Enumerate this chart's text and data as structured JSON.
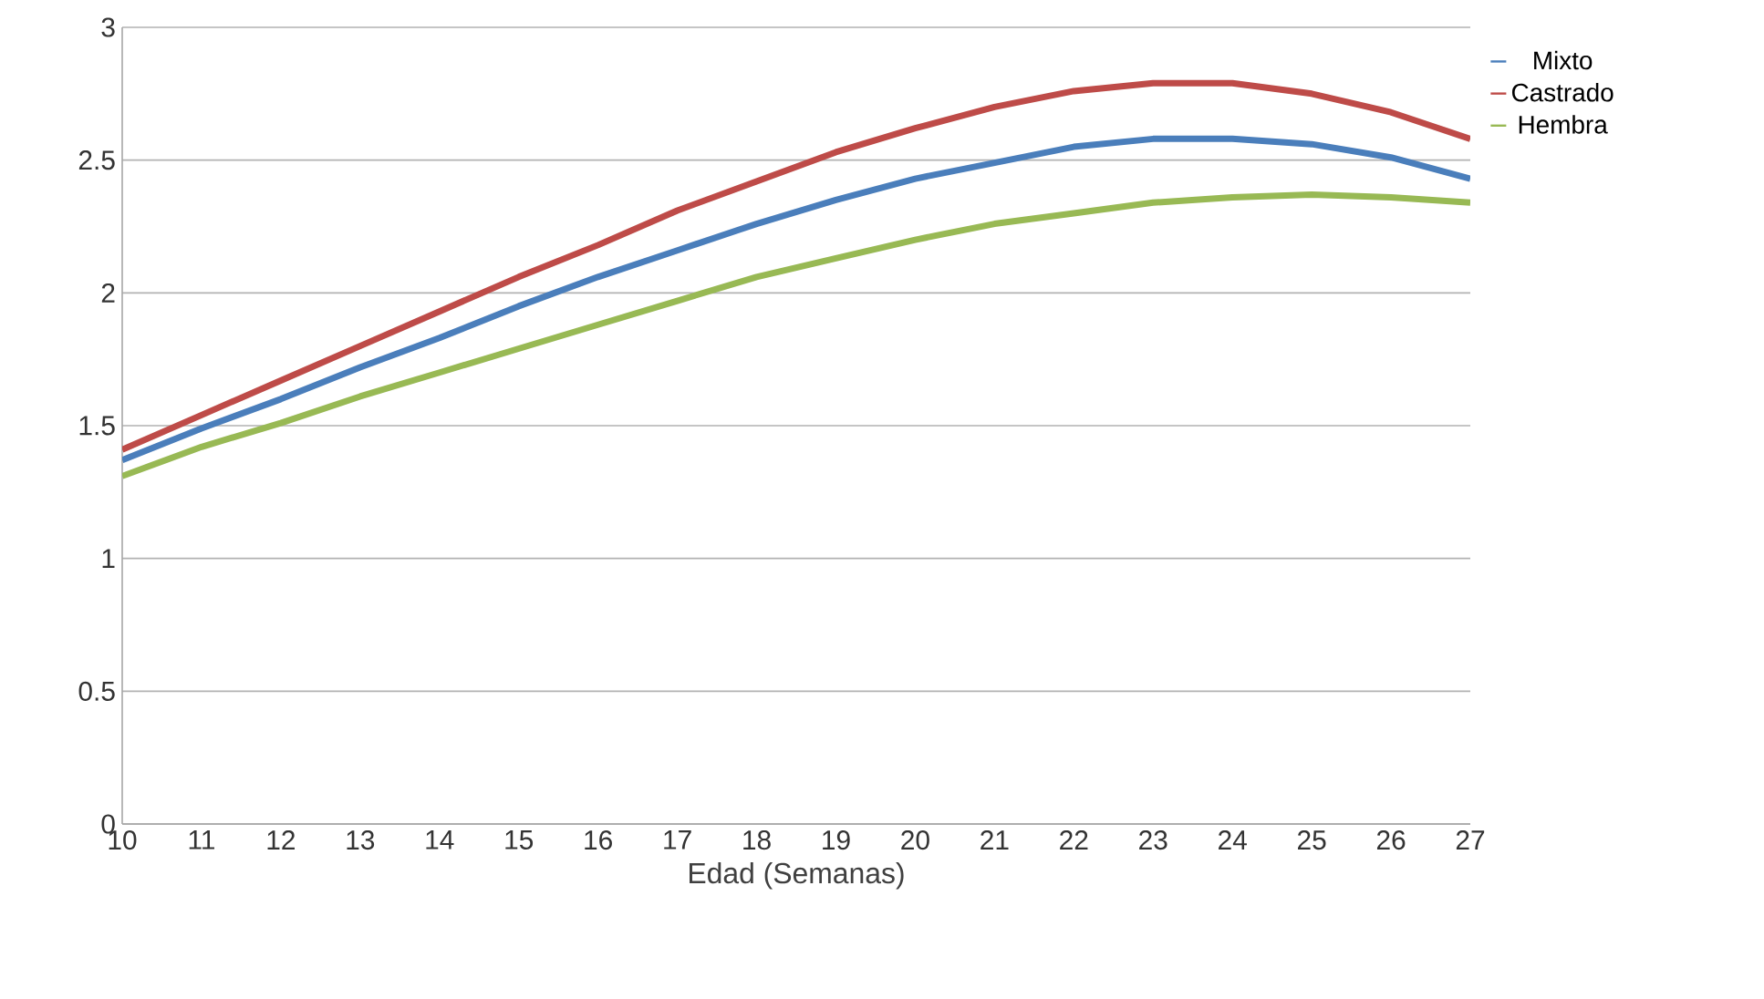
{
  "chart_data": {
    "type": "line",
    "xlabel": "Edad (Semanas)",
    "categories": [
      "10",
      "11",
      "12",
      "13",
      "14",
      "15",
      "16",
      "17",
      "18",
      "19",
      "20",
      "21",
      "22",
      "23",
      "24",
      "25",
      "26",
      "27"
    ],
    "series": [
      {
        "name": "Mixto",
        "color": "#4a7ebb",
        "values": [
          1.37,
          1.49,
          1.6,
          1.72,
          1.83,
          1.95,
          2.06,
          2.16,
          2.26,
          2.35,
          2.43,
          2.49,
          2.55,
          2.58,
          2.58,
          2.56,
          2.51,
          2.43
        ]
      },
      {
        "name": "Castrado",
        "color": "#be4b48",
        "values": [
          1.41,
          1.54,
          1.67,
          1.8,
          1.93,
          2.06,
          2.18,
          2.31,
          2.42,
          2.53,
          2.62,
          2.7,
          2.76,
          2.79,
          2.79,
          2.75,
          2.68,
          2.58
        ]
      },
      {
        "name": "Hembra",
        "color": "#98b954",
        "values": [
          1.31,
          1.42,
          1.51,
          1.61,
          1.7,
          1.79,
          1.88,
          1.97,
          2.06,
          2.13,
          2.2,
          2.26,
          2.3,
          2.34,
          2.36,
          2.37,
          2.36,
          2.34
        ]
      }
    ],
    "ylim": [
      0,
      3
    ],
    "yticks": [
      0,
      0.5,
      1,
      1.5,
      2,
      2.5,
      3
    ],
    "grid": "y",
    "legend": "right",
    "marker": "none",
    "line_style": "solid"
  }
}
